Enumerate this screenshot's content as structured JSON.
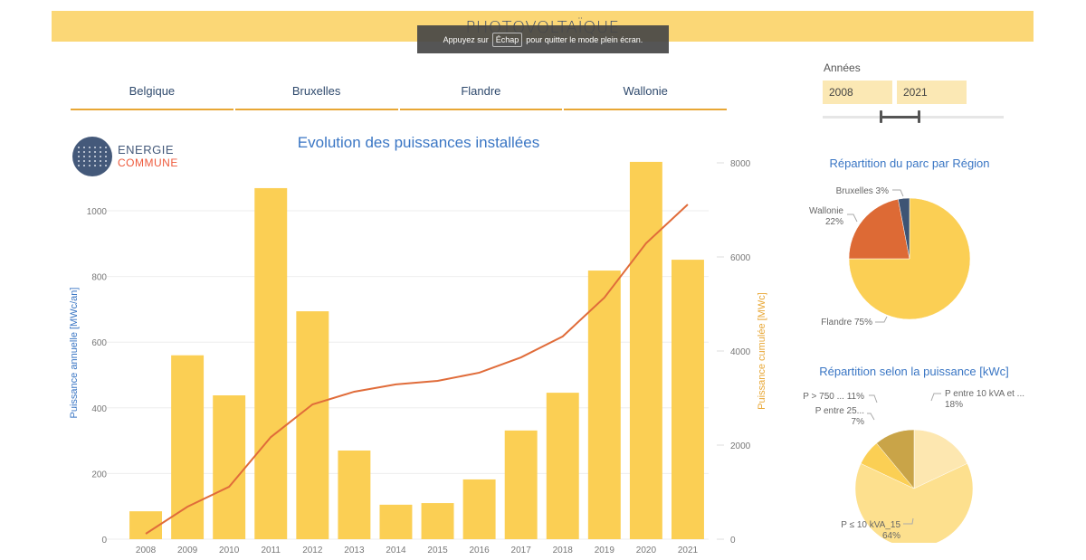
{
  "header": {
    "title": "PHOTOVOLTAÏQUE",
    "fullscreen_toast": {
      "prefix": "Appuyez sur",
      "key": "Échap",
      "suffix": "pour quitter le mode plein écran."
    }
  },
  "tabs": [
    {
      "label": "Belgique"
    },
    {
      "label": "Bruxelles"
    },
    {
      "label": "Flandre"
    },
    {
      "label": "Wallonie"
    }
  ],
  "logo": {
    "line1": "ENERGIE",
    "line2": "COMMUNE"
  },
  "filters": {
    "years_label": "Années",
    "year_from": "2008",
    "year_to": "2021"
  },
  "colors": {
    "bar": "#fbcf54",
    "line": "#e06c3a",
    "banner": "#fbd776",
    "title_blue": "#3a76c4",
    "axis_right": "#e8a735",
    "flandre": "#fbcf54",
    "wallonie": "#dd6a35",
    "bruxelles": "#3d5474"
  },
  "chart_data": [
    {
      "type": "bar+line",
      "title": "Evolution des puissances installées",
      "categories": [
        "2008",
        "2009",
        "2010",
        "2011",
        "2012",
        "2013",
        "2014",
        "2015",
        "2016",
        "2017",
        "2018",
        "2019",
        "2020",
        "2021"
      ],
      "series": [
        {
          "name": "Puissance annuelle [MWc/an]",
          "type": "bar",
          "axis": "left",
          "values": [
            85,
            560,
            438,
            1069,
            694,
            270,
            105,
            110,
            182,
            331,
            446,
            818,
            1149,
            851
          ]
        },
        {
          "name": "Puissance cumulée [MWc]",
          "type": "line",
          "axis": "right",
          "values": [
            115,
            690,
            1115,
            2170,
            2865,
            3135,
            3290,
            3365,
            3540,
            3865,
            4310,
            5135,
            6290,
            7115
          ]
        }
      ],
      "ylabel": "Puissance annuelle [MWc/an]",
      "y2label": "Puissance cumulée [MWc]",
      "ylim": [
        0,
        1150
      ],
      "y2lim": [
        0,
        8000
      ],
      "yticks": [
        0,
        200,
        400,
        600,
        800,
        1000
      ],
      "y2ticks": [
        0,
        2000,
        4000,
        6000,
        8000
      ],
      "grid": true
    },
    {
      "type": "pie",
      "title": "Répartition du parc par Région",
      "labels": [
        "Flandre",
        "Wallonie",
        "Bruxelles"
      ],
      "values": [
        75,
        22,
        3
      ],
      "label_text": [
        "Flandre 75%",
        "Wallonie 22%",
        "Bruxelles 3%"
      ]
    },
    {
      "type": "pie",
      "title": "Répartition  selon la puissance [kWc]",
      "labels": [
        "P entre 10 kVA et ...",
        "P ≤ 10 kVA_15",
        "P entre 25...",
        "P > 750 ..."
      ],
      "values": [
        18,
        64,
        7,
        11
      ],
      "label_text": [
        "P entre 10 kVA et ... 18%",
        "P ≤ 10 kVA_15 64%",
        "P entre 25... 7%",
        "P > 750 ... 11%"
      ]
    }
  ]
}
